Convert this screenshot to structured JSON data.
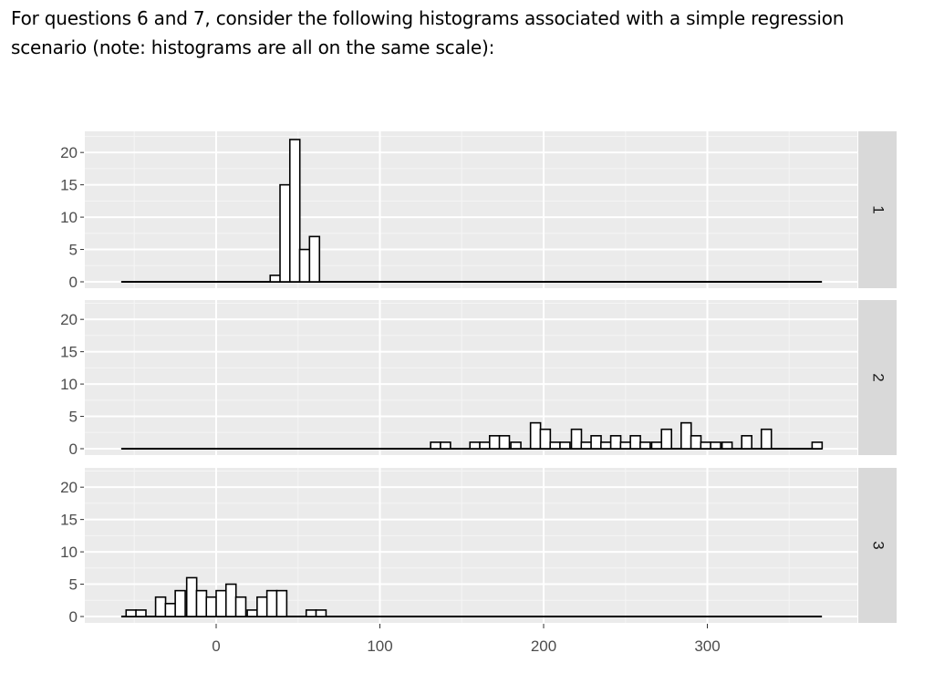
{
  "question": {
    "line1": "For questions 6 and 7, consider the following histograms associated with a simple regression",
    "line2": "scenario (note: histograms are all on the same scale):"
  },
  "chart_data": {
    "type": "histogram",
    "title": "",
    "xlabel": "",
    "ylabel": "",
    "facet_strip_position": "right",
    "facets": [
      "1",
      "2",
      "3"
    ],
    "x_ticks": [
      0,
      100,
      200,
      300
    ],
    "y_ticks": [
      0,
      5,
      10,
      15,
      20
    ],
    "xlim": [
      -60,
      375
    ],
    "ylim": [
      0,
      23
    ],
    "bin_width": 6.1,
    "grid": true,
    "background": "#EBEBEB",
    "strip_color": "#D9D9D9",
    "bar_fill": "#FFFFFF",
    "bar_outline": "#000000",
    "baseline_range": [
      -58,
      370
    ],
    "panels": [
      {
        "label": "1",
        "bins": [
          {
            "x": 33,
            "count": 1
          },
          {
            "x": 39,
            "count": 15
          },
          {
            "x": 45,
            "count": 22
          },
          {
            "x": 51,
            "count": 5
          },
          {
            "x": 57,
            "count": 7
          }
        ]
      },
      {
        "label": "2",
        "bins": [
          {
            "x": 131,
            "count": 1
          },
          {
            "x": 137,
            "count": 1
          },
          {
            "x": 155,
            "count": 1
          },
          {
            "x": 161,
            "count": 1
          },
          {
            "x": 167,
            "count": 2
          },
          {
            "x": 173,
            "count": 2
          },
          {
            "x": 180,
            "count": 1
          },
          {
            "x": 192,
            "count": 4
          },
          {
            "x": 198,
            "count": 3
          },
          {
            "x": 204,
            "count": 1
          },
          {
            "x": 210,
            "count": 1
          },
          {
            "x": 217,
            "count": 3
          },
          {
            "x": 223,
            "count": 1
          },
          {
            "x": 229,
            "count": 2
          },
          {
            "x": 235,
            "count": 1
          },
          {
            "x": 241,
            "count": 2
          },
          {
            "x": 247,
            "count": 1
          },
          {
            "x": 253,
            "count": 2
          },
          {
            "x": 259,
            "count": 1
          },
          {
            "x": 266,
            "count": 1
          },
          {
            "x": 272,
            "count": 3
          },
          {
            "x": 284,
            "count": 4
          },
          {
            "x": 290,
            "count": 2
          },
          {
            "x": 296,
            "count": 1
          },
          {
            "x": 302,
            "count": 1
          },
          {
            "x": 309,
            "count": 1
          },
          {
            "x": 321,
            "count": 2
          },
          {
            "x": 333,
            "count": 3
          },
          {
            "x": 364,
            "count": 1
          }
        ]
      },
      {
        "label": "3",
        "bins": [
          {
            "x": -55,
            "count": 1
          },
          {
            "x": -49,
            "count": 1
          },
          {
            "x": -37,
            "count": 3
          },
          {
            "x": -31,
            "count": 2
          },
          {
            "x": -25,
            "count": 4
          },
          {
            "x": -18,
            "count": 6
          },
          {
            "x": -12,
            "count": 4
          },
          {
            "x": -6,
            "count": 3
          },
          {
            "x": 0,
            "count": 4
          },
          {
            "x": 6,
            "count": 5
          },
          {
            "x": 12,
            "count": 3
          },
          {
            "x": 19,
            "count": 1
          },
          {
            "x": 25,
            "count": 3
          },
          {
            "x": 31,
            "count": 4
          },
          {
            "x": 37,
            "count": 4
          },
          {
            "x": 55,
            "count": 1
          },
          {
            "x": 61,
            "count": 1
          }
        ]
      }
    ]
  }
}
